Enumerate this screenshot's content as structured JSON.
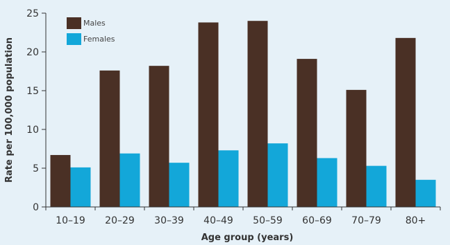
{
  "chart_data": {
    "type": "bar",
    "title": "",
    "xlabel": "Age group (years)",
    "ylabel": "Rate per 100,000 population",
    "categories": [
      "10–19",
      "20–29",
      "30–39",
      "40–49",
      "50–59",
      "60–69",
      "70–79",
      "80+"
    ],
    "series": [
      {
        "name": "Males",
        "values": [
          6.7,
          17.6,
          18.2,
          23.8,
          24.0,
          19.1,
          15.1,
          21.8
        ],
        "color": "#4a3025"
      },
      {
        "name": "Females",
        "values": [
          5.1,
          6.9,
          5.7,
          7.3,
          8.2,
          6.3,
          5.3,
          3.5
        ],
        "color": "#13a7d9"
      }
    ],
    "ylim": [
      0,
      25
    ],
    "yticks": [
      "0",
      "5",
      "10",
      "15",
      "20",
      "25"
    ],
    "grid": false,
    "legend_position": "top-left"
  },
  "colors": {
    "background": "#e6f1f8",
    "axis": "#333333"
  }
}
